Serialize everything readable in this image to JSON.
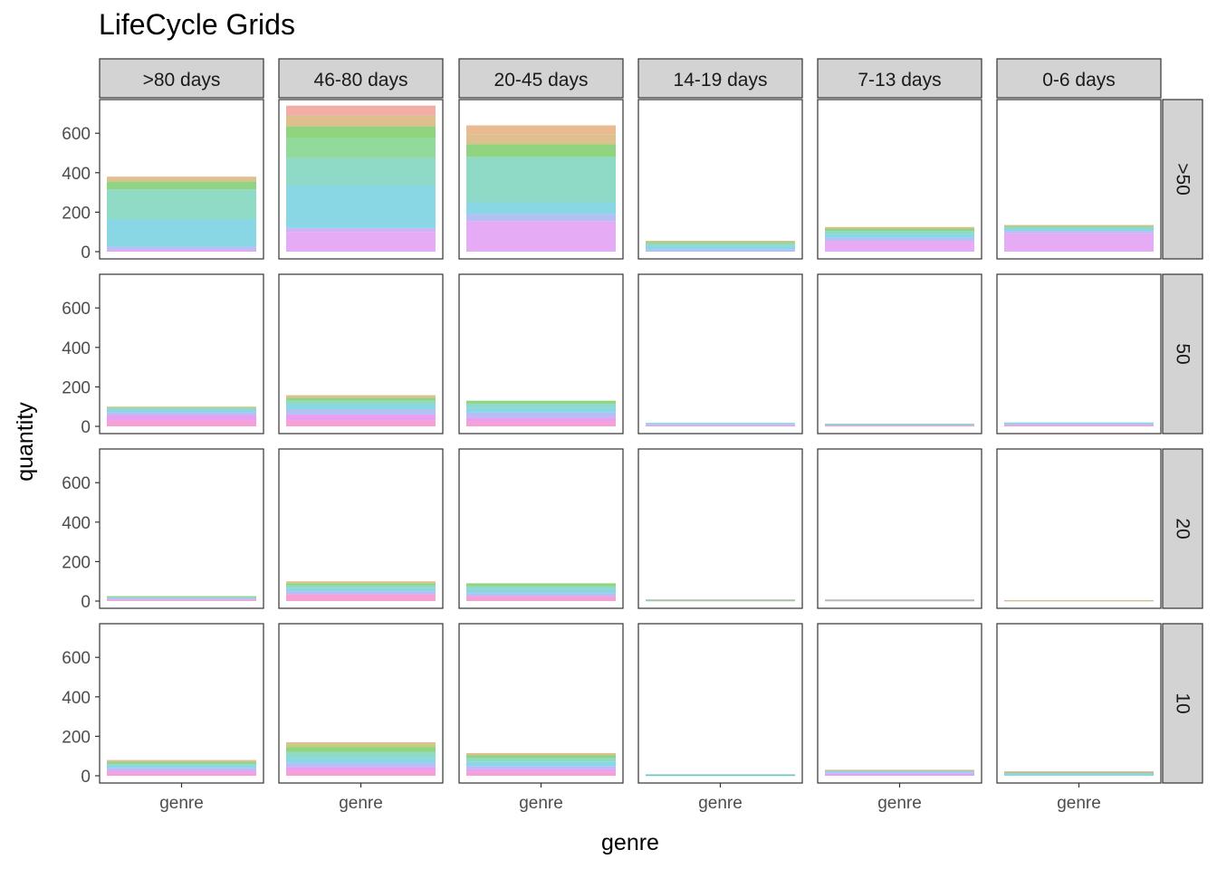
{
  "chart_data": {
    "type": "bar",
    "title": "LifeCycle Grids",
    "xlabel": "genre",
    "ylabel": "quantity",
    "ylim": [
      0,
      760
    ],
    "yticks": [
      0,
      200,
      400,
      600
    ],
    "x_category": "genre",
    "column_facets": [
      ">80 days",
      "46-80 days",
      "20-45 days",
      "14-19 days",
      "7-13 days",
      "0-6 days"
    ],
    "row_facets": [
      ">50",
      "50",
      "20",
      "10"
    ],
    "grid": false,
    "legend": "none",
    "panels": [
      [
        {
          "total": 380,
          "segments": [
            {
              "value": 8,
              "color": "#e48ef0"
            },
            {
              "value": 17,
              "color": "#a8b4f4"
            },
            {
              "value": 140,
              "color": "#74cfe1"
            },
            {
              "value": 150,
              "color": "#7dd5bb"
            },
            {
              "value": 40,
              "color": "#7ccd6d"
            },
            {
              "value": 25,
              "color": "#d8b57a"
            }
          ]
        },
        {
          "total": 740,
          "segments": [
            {
              "value": 100,
              "color": "#e09cf3"
            },
            {
              "value": 20,
              "color": "#c2a8f2"
            },
            {
              "value": 215,
              "color": "#74cfe1"
            },
            {
              "value": 140,
              "color": "#7bd3bc"
            },
            {
              "value": 100,
              "color": "#7fd38a"
            },
            {
              "value": 60,
              "color": "#7dcc6a"
            },
            {
              "value": 55,
              "color": "#d8b57a"
            },
            {
              "value": 50,
              "color": "#f0a096"
            }
          ]
        },
        {
          "total": 640,
          "segments": [
            {
              "value": 155,
              "color": "#e09cf3"
            },
            {
              "value": 35,
              "color": "#a8b4f4"
            },
            {
              "value": 60,
              "color": "#74cfe1"
            },
            {
              "value": 230,
              "color": "#7bd3bc"
            },
            {
              "value": 65,
              "color": "#7dcc6a"
            },
            {
              "value": 50,
              "color": "#d8b57a"
            },
            {
              "value": 45,
              "color": "#e6ae80"
            }
          ]
        },
        {
          "total": 55,
          "segments": [
            {
              "value": 12,
              "color": "#a8b4f4"
            },
            {
              "value": 18,
              "color": "#74cfe1"
            },
            {
              "value": 12,
              "color": "#7bd3bc"
            },
            {
              "value": 8,
              "color": "#7dcc6a"
            },
            {
              "value": 5,
              "color": "#d8b57a"
            }
          ]
        },
        {
          "total": 125,
          "segments": [
            {
              "value": 55,
              "color": "#e09cf3"
            },
            {
              "value": 15,
              "color": "#a8b4f4"
            },
            {
              "value": 20,
              "color": "#74cfe1"
            },
            {
              "value": 15,
              "color": "#7bd3bc"
            },
            {
              "value": 12,
              "color": "#7dcc6a"
            },
            {
              "value": 8,
              "color": "#d8b57a"
            }
          ]
        },
        {
          "total": 135,
          "segments": [
            {
              "value": 95,
              "color": "#e09cf3"
            },
            {
              "value": 10,
              "color": "#a8b4f4"
            },
            {
              "value": 12,
              "color": "#74cfe1"
            },
            {
              "value": 8,
              "color": "#7bd3bc"
            },
            {
              "value": 6,
              "color": "#7dcc6a"
            },
            {
              "value": 4,
              "color": "#d8b57a"
            }
          ]
        }
      ],
      [
        {
          "total": 100,
          "segments": [
            {
              "value": 30,
              "color": "#f58fcf"
            },
            {
              "value": 25,
              "color": "#e48ef0"
            },
            {
              "value": 18,
              "color": "#a8b4f4"
            },
            {
              "value": 12,
              "color": "#74cfe1"
            },
            {
              "value": 9,
              "color": "#7bd3bc"
            },
            {
              "value": 6,
              "color": "#b8c46a"
            }
          ]
        },
        {
          "total": 158,
          "segments": [
            {
              "value": 30,
              "color": "#f58fcf"
            },
            {
              "value": 30,
              "color": "#e48ef0"
            },
            {
              "value": 25,
              "color": "#a8b4f4"
            },
            {
              "value": 25,
              "color": "#74cfe1"
            },
            {
              "value": 20,
              "color": "#7bd3bc"
            },
            {
              "value": 15,
              "color": "#7dcc6a"
            },
            {
              "value": 13,
              "color": "#d8b57a"
            }
          ]
        },
        {
          "total": 130,
          "segments": [
            {
              "value": 25,
              "color": "#f58fcf"
            },
            {
              "value": 20,
              "color": "#e48ef0"
            },
            {
              "value": 25,
              "color": "#a8b4f4"
            },
            {
              "value": 25,
              "color": "#74cfe1"
            },
            {
              "value": 20,
              "color": "#7bd3bc"
            },
            {
              "value": 15,
              "color": "#7dcc6a"
            }
          ]
        },
        {
          "total": 18,
          "segments": [
            {
              "value": 6,
              "color": "#e48ef0"
            },
            {
              "value": 6,
              "color": "#a8b4f4"
            },
            {
              "value": 6,
              "color": "#74cfe1"
            }
          ]
        },
        {
          "total": 14,
          "segments": [
            {
              "value": 5,
              "color": "#f58fcf"
            },
            {
              "value": 5,
              "color": "#a8b4f4"
            },
            {
              "value": 4,
              "color": "#7bd3bc"
            }
          ]
        },
        {
          "total": 20,
          "segments": [
            {
              "value": 7,
              "color": "#f58fcf"
            },
            {
              "value": 7,
              "color": "#a8b4f4"
            },
            {
              "value": 6,
              "color": "#74cfe1"
            }
          ]
        }
      ],
      [
        {
          "total": 25,
          "segments": [
            {
              "value": 8,
              "color": "#f58fcf"
            },
            {
              "value": 7,
              "color": "#a8b4f4"
            },
            {
              "value": 5,
              "color": "#74cfe1"
            },
            {
              "value": 5,
              "color": "#7dcc6a"
            }
          ]
        },
        {
          "total": 100,
          "segments": [
            {
              "value": 35,
              "color": "#f58fcf"
            },
            {
              "value": 15,
              "color": "#a8b4f4"
            },
            {
              "value": 15,
              "color": "#74cfe1"
            },
            {
              "value": 15,
              "color": "#7bd3bc"
            },
            {
              "value": 10,
              "color": "#7dcc6a"
            },
            {
              "value": 10,
              "color": "#d8b57a"
            }
          ]
        },
        {
          "total": 90,
          "segments": [
            {
              "value": 25,
              "color": "#f58fcf"
            },
            {
              "value": 15,
              "color": "#a8b4f4"
            },
            {
              "value": 20,
              "color": "#74cfe1"
            },
            {
              "value": 15,
              "color": "#7bd3bc"
            },
            {
              "value": 15,
              "color": "#7dcc6a"
            }
          ]
        },
        {
          "total": 8,
          "segments": [
            {
              "value": 4,
              "color": "#74cfe1"
            },
            {
              "value": 4,
              "color": "#b8a874"
            }
          ]
        },
        {
          "total": 8,
          "segments": [
            {
              "value": 4,
              "color": "#a8b4f4"
            },
            {
              "value": 4,
              "color": "#b8a874"
            }
          ]
        },
        {
          "total": 4,
          "segments": [
            {
              "value": 4,
              "color": "#b8a874"
            }
          ]
        }
      ],
      [
        {
          "total": 80,
          "segments": [
            {
              "value": 15,
              "color": "#f58fcf"
            },
            {
              "value": 12,
              "color": "#e48ef0"
            },
            {
              "value": 13,
              "color": "#a8b4f4"
            },
            {
              "value": 12,
              "color": "#74cfe1"
            },
            {
              "value": 10,
              "color": "#7bd3bc"
            },
            {
              "value": 10,
              "color": "#7dcc6a"
            },
            {
              "value": 8,
              "color": "#e6ae80"
            }
          ]
        },
        {
          "total": 170,
          "segments": [
            {
              "value": 25,
              "color": "#f58fcf"
            },
            {
              "value": 20,
              "color": "#e48ef0"
            },
            {
              "value": 20,
              "color": "#a8b4f4"
            },
            {
              "value": 25,
              "color": "#74cfe1"
            },
            {
              "value": 30,
              "color": "#7bd3bc"
            },
            {
              "value": 25,
              "color": "#7dcc6a"
            },
            {
              "value": 15,
              "color": "#b8c46a"
            },
            {
              "value": 10,
              "color": "#d8b57a"
            }
          ]
        },
        {
          "total": 115,
          "segments": [
            {
              "value": 20,
              "color": "#f58fcf"
            },
            {
              "value": 15,
              "color": "#e48ef0"
            },
            {
              "value": 15,
              "color": "#a8b4f4"
            },
            {
              "value": 20,
              "color": "#74cfe1"
            },
            {
              "value": 20,
              "color": "#7bd3bc"
            },
            {
              "value": 15,
              "color": "#7dcc6a"
            },
            {
              "value": 10,
              "color": "#d8b57a"
            }
          ]
        },
        {
          "total": 7,
          "segments": [
            {
              "value": 4,
              "color": "#74cfe1"
            },
            {
              "value": 3,
              "color": "#5fb7a8"
            }
          ]
        },
        {
          "total": 30,
          "segments": [
            {
              "value": 10,
              "color": "#e48ef0"
            },
            {
              "value": 8,
              "color": "#a8b4f4"
            },
            {
              "value": 6,
              "color": "#74cfe1"
            },
            {
              "value": 6,
              "color": "#b8a874"
            }
          ]
        },
        {
          "total": 22,
          "segments": [
            {
              "value": 7,
              "color": "#74cfe1"
            },
            {
              "value": 7,
              "color": "#7bd3bc"
            },
            {
              "value": 8,
              "color": "#b8a874"
            }
          ]
        }
      ]
    ]
  }
}
